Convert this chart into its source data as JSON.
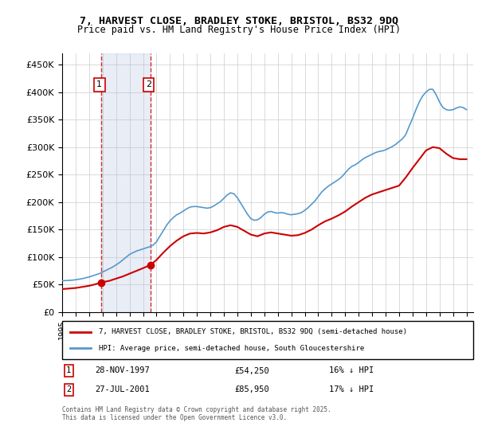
{
  "title_line1": "7, HARVEST CLOSE, BRADLEY STOKE, BRISTOL, BS32 9DQ",
  "title_line2": "Price paid vs. HM Land Registry's House Price Index (HPI)",
  "ylabel_ticks": [
    "£0",
    "£50K",
    "£100K",
    "£150K",
    "£200K",
    "£250K",
    "£300K",
    "£350K",
    "£400K",
    "£450K"
  ],
  "ytick_values": [
    0,
    50000,
    100000,
    150000,
    200000,
    250000,
    300000,
    350000,
    400000,
    450000
  ],
  "xmin": 1995.0,
  "xmax": 2025.5,
  "ymin": 0,
  "ymax": 470000,
  "red_line_color": "#cc0000",
  "blue_line_color": "#5599cc",
  "transaction1": {
    "date": "28-NOV-1997",
    "year": 1997.91,
    "price": 54250,
    "label": "1"
  },
  "transaction2": {
    "date": "27-JUL-2001",
    "year": 2001.56,
    "price": 85950,
    "label": "2"
  },
  "legend_label_red": "7, HARVEST CLOSE, BRADLEY STOKE, BRISTOL, BS32 9DQ (semi-detached house)",
  "legend_label_blue": "HPI: Average price, semi-detached house, South Gloucestershire",
  "table_row1": [
    "1",
    "28-NOV-1997",
    "£54,250",
    "16% ↓ HPI"
  ],
  "table_row2": [
    "2",
    "27-JUL-2001",
    "£85,950",
    "17% ↓ HPI"
  ],
  "footnote": "Contains HM Land Registry data © Crown copyright and database right 2025.\nThis data is licensed under the Open Government Licence v3.0.",
  "hpi_data": {
    "years": [
      1995.0,
      1995.25,
      1995.5,
      1995.75,
      1996.0,
      1996.25,
      1996.5,
      1996.75,
      1997.0,
      1997.25,
      1997.5,
      1997.75,
      1998.0,
      1998.25,
      1998.5,
      1998.75,
      1999.0,
      1999.25,
      1999.5,
      1999.75,
      2000.0,
      2000.25,
      2000.5,
      2000.75,
      2001.0,
      2001.25,
      2001.5,
      2001.75,
      2002.0,
      2002.25,
      2002.5,
      2002.75,
      2003.0,
      2003.25,
      2003.5,
      2003.75,
      2004.0,
      2004.25,
      2004.5,
      2004.75,
      2005.0,
      2005.25,
      2005.5,
      2005.75,
      2006.0,
      2006.25,
      2006.5,
      2006.75,
      2007.0,
      2007.25,
      2007.5,
      2007.75,
      2008.0,
      2008.25,
      2008.5,
      2008.75,
      2009.0,
      2009.25,
      2009.5,
      2009.75,
      2010.0,
      2010.25,
      2010.5,
      2010.75,
      2011.0,
      2011.25,
      2011.5,
      2011.75,
      2012.0,
      2012.25,
      2012.5,
      2012.75,
      2013.0,
      2013.25,
      2013.5,
      2013.75,
      2014.0,
      2014.25,
      2014.5,
      2014.75,
      2015.0,
      2015.25,
      2015.5,
      2015.75,
      2016.0,
      2016.25,
      2016.5,
      2016.75,
      2017.0,
      2017.25,
      2017.5,
      2017.75,
      2018.0,
      2018.25,
      2018.5,
      2018.75,
      2019.0,
      2019.25,
      2019.5,
      2019.75,
      2020.0,
      2020.25,
      2020.5,
      2020.75,
      2021.0,
      2021.25,
      2021.5,
      2021.75,
      2022.0,
      2022.25,
      2022.5,
      2022.75,
      2023.0,
      2023.25,
      2023.5,
      2023.75,
      2024.0,
      2024.25,
      2024.5,
      2024.75,
      2025.0
    ],
    "values": [
      57000,
      57500,
      57800,
      58200,
      59000,
      60000,
      61000,
      62500,
      64000,
      66000,
      68000,
      70000,
      73000,
      76000,
      79000,
      82000,
      86000,
      90000,
      95000,
      100000,
      105000,
      108000,
      111000,
      113000,
      115000,
      117000,
      119000,
      122000,
      128000,
      138000,
      148000,
      158000,
      166000,
      172000,
      177000,
      180000,
      184000,
      188000,
      191000,
      192000,
      192000,
      191000,
      190000,
      189000,
      190000,
      193000,
      197000,
      201000,
      207000,
      213000,
      217000,
      215000,
      208000,
      198000,
      188000,
      178000,
      170000,
      167000,
      168000,
      172000,
      178000,
      182000,
      183000,
      181000,
      180000,
      181000,
      180000,
      178000,
      177000,
      178000,
      179000,
      181000,
      185000,
      190000,
      196000,
      202000,
      210000,
      218000,
      224000,
      229000,
      233000,
      237000,
      241000,
      246000,
      253000,
      260000,
      265000,
      268000,
      272000,
      277000,
      281000,
      284000,
      287000,
      290000,
      292000,
      293000,
      295000,
      298000,
      301000,
      305000,
      310000,
      315000,
      323000,
      338000,
      352000,
      368000,
      382000,
      393000,
      400000,
      405000,
      405000,
      395000,
      382000,
      372000,
      368000,
      367000,
      368000,
      371000,
      373000,
      372000,
      368000
    ]
  },
  "red_data": {
    "years": [
      1995.0,
      1995.5,
      1996.0,
      1996.5,
      1997.0,
      1997.5,
      1997.91,
      1997.91,
      1998.5,
      1999.0,
      1999.5,
      2000.0,
      2000.5,
      2001.0,
      2001.56,
      2001.56,
      2002.0,
      2002.5,
      2003.0,
      2003.5,
      2004.0,
      2004.5,
      2005.0,
      2005.5,
      2006.0,
      2006.5,
      2007.0,
      2007.5,
      2008.0,
      2008.5,
      2009.0,
      2009.5,
      2010.0,
      2010.5,
      2011.0,
      2011.5,
      2012.0,
      2012.5,
      2013.0,
      2013.5,
      2014.0,
      2014.5,
      2015.0,
      2015.5,
      2016.0,
      2016.5,
      2017.0,
      2017.5,
      2018.0,
      2018.5,
      2019.0,
      2019.5,
      2020.0,
      2020.5,
      2021.0,
      2021.5,
      2022.0,
      2022.5,
      2023.0,
      2023.5,
      2024.0,
      2024.5,
      2025.0
    ],
    "values": [
      42000,
      43000,
      44000,
      46000,
      48000,
      51000,
      54250,
      54250,
      57000,
      61000,
      65000,
      70000,
      75000,
      80000,
      85950,
      85950,
      95000,
      108000,
      120000,
      130000,
      138000,
      143000,
      144000,
      143000,
      145000,
      149000,
      155000,
      158000,
      155000,
      148000,
      141000,
      138000,
      143000,
      145000,
      143000,
      141000,
      139000,
      140000,
      144000,
      150000,
      158000,
      165000,
      170000,
      176000,
      183000,
      192000,
      200000,
      208000,
      214000,
      218000,
      222000,
      226000,
      230000,
      245000,
      262000,
      278000,
      294000,
      300000,
      298000,
      288000,
      280000,
      278000,
      278000
    ]
  },
  "vline1_x": 1997.91,
  "vline2_x": 2001.56,
  "shaded_region_color": "#aabbdd",
  "shaded_region_alpha": 0.25
}
